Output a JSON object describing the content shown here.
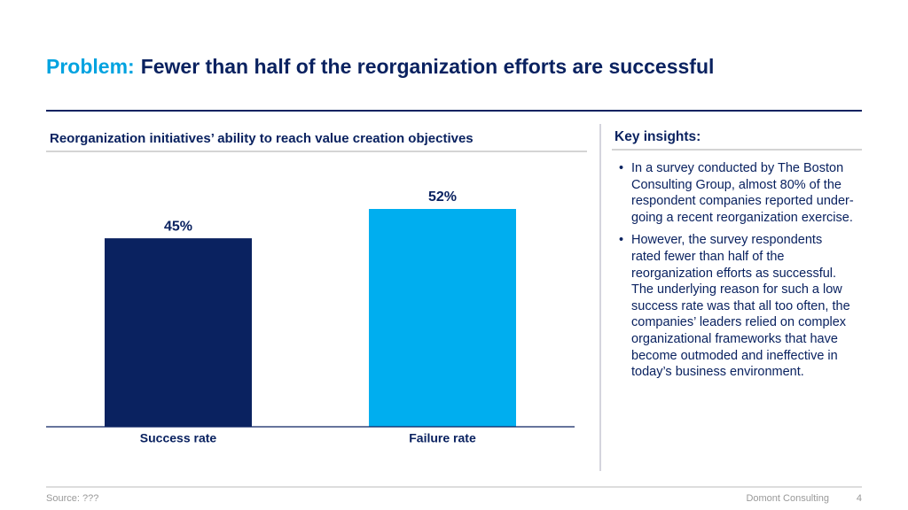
{
  "header": {
    "title_prefix": "Problem:",
    "title": "Fewer than half of the reorganization efforts are successful"
  },
  "chart_data": {
    "type": "bar",
    "title": "Reorganization initiatives’ ability to reach value creation objectives",
    "categories": [
      "Success rate",
      "Failure rate"
    ],
    "values": [
      45,
      52
    ],
    "value_labels": [
      "45%",
      "52%"
    ],
    "colors": [
      "#0a2260",
      "#00aeef"
    ]
  },
  "insights": {
    "title": "Key insights:",
    "bullets": [
      "In a survey conducted by The Boston Consulting Group, almost 80% of the respondent companies reported under-going a recent reorganization exercise.",
      "However, the survey respondents rated fewer than half of the reorganization efforts as successful. The underlying reason for such a low success rate was that all too often, the companies’ leaders relied on complex organizational frameworks that have become outmoded and ineffective in today’s business environment."
    ]
  },
  "footer": {
    "source": "Source: ???",
    "company": "Domont Consulting",
    "page": 4
  }
}
